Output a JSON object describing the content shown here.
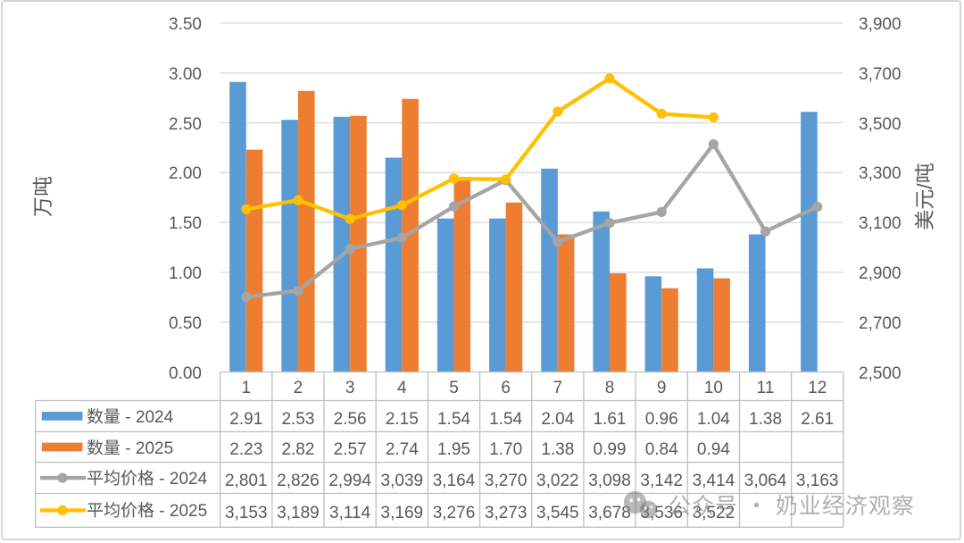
{
  "frame": {
    "background": "#ffffff",
    "border_color": "#d6d6d6"
  },
  "chart_data": {
    "type": "bar",
    "subtype": "combo-clustered-bar-and-line",
    "categories": [
      "1",
      "2",
      "3",
      "4",
      "5",
      "6",
      "7",
      "8",
      "9",
      "10",
      "11",
      "12"
    ],
    "series": [
      {
        "name": "数量 - 2024",
        "kind": "bar",
        "axis": "left",
        "color": "#5B9BD5",
        "values": [
          2.91,
          2.53,
          2.56,
          2.15,
          1.54,
          1.54,
          2.04,
          1.61,
          0.96,
          1.04,
          1.38,
          2.61
        ],
        "table_labels": [
          "2.91",
          "2.53",
          "2.56",
          "2.15",
          "1.54",
          "1.54",
          "2.04",
          "1.61",
          "0.96",
          "1.04",
          "1.38",
          "2.61"
        ]
      },
      {
        "name": "数量 - 2025",
        "kind": "bar",
        "axis": "left",
        "color": "#ED7D31",
        "values": [
          2.23,
          2.82,
          2.57,
          2.74,
          1.95,
          1.7,
          1.38,
          0.99,
          0.84,
          0.94,
          null,
          null
        ],
        "table_labels": [
          "2.23",
          "2.82",
          "2.57",
          "2.74",
          "1.95",
          "1.70",
          "1.38",
          "0.99",
          "0.84",
          "0.94",
          "",
          ""
        ]
      },
      {
        "name": "平均价格 - 2024",
        "kind": "line",
        "axis": "right",
        "color": "#A5A5A5",
        "values": [
          2801,
          2826,
          2994,
          3039,
          3164,
          3270,
          3022,
          3098,
          3142,
          3414,
          3064,
          3163
        ],
        "table_labels": [
          "2,801",
          "2,826",
          "2,994",
          "3,039",
          "3,164",
          "3,270",
          "3,022",
          "3,098",
          "3,142",
          "3,414",
          "3,064",
          "3,163"
        ]
      },
      {
        "name": "平均价格 - 2025",
        "kind": "line",
        "axis": "right",
        "color": "#FFC000",
        "values": [
          3153,
          3189,
          3114,
          3169,
          3276,
          3273,
          3545,
          3678,
          3536,
          3522,
          null,
          null
        ],
        "table_labels": [
          "3,153",
          "3,189",
          "3,114",
          "3,169",
          "3,276",
          "3,273",
          "3,545",
          "3,678",
          "3,536",
          "3,522",
          "",
          ""
        ]
      }
    ],
    "left_axis": {
      "title": "万吨",
      "min": 0,
      "max": 3.5,
      "step": 0.5,
      "tick_labels": [
        "0.00",
        "0.50",
        "1.00",
        "1.50",
        "2.00",
        "2.50",
        "3.00",
        "3.50"
      ]
    },
    "right_axis": {
      "title": "美元/吨",
      "min": 2500,
      "max": 3900,
      "step": 200,
      "tick_labels": [
        "2,500",
        "2,700",
        "2,900",
        "3,100",
        "3,300",
        "3,500",
        "3,700",
        "3,900"
      ]
    },
    "gridlines": true,
    "legend_position": "data-table",
    "title": ""
  },
  "watermark": {
    "icon": "wechat-icon",
    "text": "公众号 · 奶业经济观察"
  },
  "colors": {
    "grid": "#D9D9D9",
    "axis_line": "#BFBFBF",
    "table_border": "#BFBFBF",
    "text": "#595959",
    "watermark": "#ACACAC"
  }
}
